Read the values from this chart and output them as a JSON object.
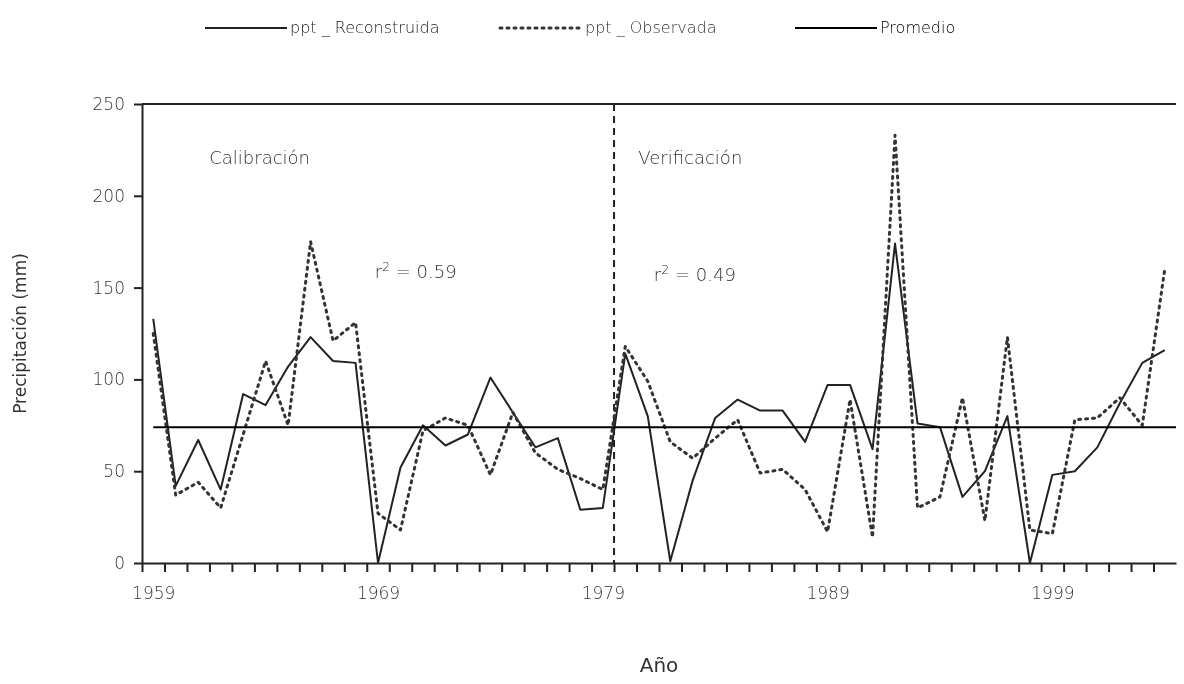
{
  "chart_data": {
    "type": "line",
    "xlabel": "Año",
    "ylabel": "Precipitación (mm)",
    "xlim": [
      1958.5,
      2004.5
    ],
    "ylim": [
      0,
      250
    ],
    "yticks": [
      0,
      50,
      100,
      150,
      200,
      250
    ],
    "xticks": [
      1959,
      1969,
      1979,
      1989,
      1999,
      {
        "value": 1958.5,
        "label": null
      },
      {
        "value": 1959.5,
        "label": null
      },
      {
        "value": 1960.5,
        "label": null
      },
      {
        "value": 1961.5,
        "label": null
      },
      {
        "value": 1962.5,
        "label": null
      },
      {
        "value": 1963.5,
        "label": null
      },
      {
        "value": 1964.5,
        "label": null
      },
      {
        "value": 1965.5,
        "label": null
      },
      {
        "value": 1966.5,
        "label": null
      },
      {
        "value": 1967.5,
        "label": null
      },
      {
        "value": 1968.5,
        "label": null
      },
      {
        "value": 1969.5,
        "label": null
      },
      {
        "value": 1970.5,
        "label": null
      },
      {
        "value": 1971.5,
        "label": null
      },
      {
        "value": 1972.5,
        "label": null
      },
      {
        "value": 1973.5,
        "label": null
      },
      {
        "value": 1974.5,
        "label": null
      },
      {
        "value": 1975.5,
        "label": null
      },
      {
        "value": 1976.5,
        "label": null
      },
      {
        "value": 1977.5,
        "label": null
      },
      {
        "value": 1978.5,
        "label": null
      },
      {
        "value": 1979.5,
        "label": null
      },
      {
        "value": 1980.5,
        "label": null
      },
      {
        "value": 1981.5,
        "label": null
      },
      {
        "value": 1982.5,
        "label": null
      },
      {
        "value": 1983.5,
        "label": null
      },
      {
        "value": 1984.5,
        "label": null
      },
      {
        "value": 1985.5,
        "label": null
      },
      {
        "value": 1986.5,
        "label": null
      },
      {
        "value": 1987.5,
        "label": null
      },
      {
        "value": 1988.5,
        "label": null
      },
      {
        "value": 1989.5,
        "label": null
      },
      {
        "value": 1990.5,
        "label": null
      },
      {
        "value": 1991.5,
        "label": null
      },
      {
        "value": 1992.5,
        "label": null
      },
      {
        "value": 1993.5,
        "label": null
      },
      {
        "value": 1994.5,
        "label": null
      },
      {
        "value": 1995.5,
        "label": null
      },
      {
        "value": 1996.5,
        "label": null
      },
      {
        "value": 1997.5,
        "label": null
      },
      {
        "value": 1998.5,
        "label": null
      },
      {
        "value": 1999.5,
        "label": null
      },
      {
        "value": 2000.5,
        "label": null
      },
      {
        "value": 2001.5,
        "label": null
      },
      {
        "value": 2002.5,
        "label": null
      },
      {
        "value": 2003.5,
        "label": null
      }
    ],
    "x": [
      1959,
      1960,
      1961,
      1962,
      1963,
      1964,
      1965,
      1966,
      1967,
      1968,
      1969,
      1970,
      1971,
      1972,
      1973,
      1974,
      1975,
      1976,
      1977,
      1978,
      1979,
      1980,
      1981,
      1982,
      1983,
      1984,
      1985,
      1986,
      1987,
      1988,
      1989,
      1990,
      1991,
      1992,
      1993,
      1994,
      1995,
      1996,
      1997,
      1998,
      1999,
      2000,
      2001,
      2002,
      2003,
      2004
    ],
    "series": [
      {
        "name": "ppt _ Reconstruida",
        "color": "#222222",
        "line_style": "solid",
        "values": [
          133,
          42,
          67,
          40,
          92,
          86,
          107,
          123,
          110,
          109,
          0,
          52,
          75,
          64,
          70,
          101,
          82,
          63,
          68,
          29,
          30,
          114,
          80,
          1,
          45,
          79,
          89,
          83,
          83,
          66,
          97,
          97,
          62,
          174,
          76,
          74,
          36,
          50,
          80,
          0,
          48,
          50,
          63,
          87,
          109,
          116
        ]
      },
      {
        "name": "ppt _ Observada",
        "color": "#333333",
        "line_style": "dotted",
        "values": [
          125,
          37,
          44,
          30,
          70,
          110,
          75,
          175,
          121,
          131,
          27,
          18,
          72,
          79,
          75,
          48,
          82,
          60,
          51,
          46,
          40,
          118,
          99,
          66,
          57,
          68,
          78,
          49,
          51,
          40,
          17,
          89,
          14,
          233,
          30,
          36,
          90,
          23,
          123,
          18,
          16,
          78,
          79,
          90,
          75,
          160
        ]
      },
      {
        "name": "Promedio",
        "color": "#000000",
        "line_style": "solid",
        "x": [
          1959,
          2004.5
        ],
        "values": [
          74,
          74
        ]
      }
    ],
    "ref_lines": [
      {
        "axis": "x",
        "value": 1979.5,
        "line_style": "dashed",
        "color": "#222222"
      }
    ],
    "annotations": [
      "Calibración",
      "r$^{2}$ = 0.59",
      "Verificación",
      "r$^{2}$ = 0.49"
    ],
    "legend": "top",
    "grid": false,
    "marker": "none"
  }
}
